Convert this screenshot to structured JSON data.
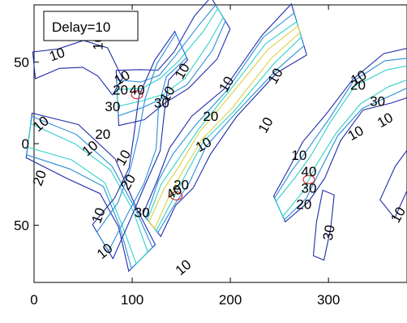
{
  "chart_data": {
    "type": "contour",
    "legend_text": "Delay=10",
    "legend_position": "top-left",
    "xlim": [
      0,
      380
    ],
    "ylim": [
      -85,
      85
    ],
    "y_reversed": true,
    "x_ticks": [
      "0",
      "100",
      "200",
      "300"
    ],
    "y_ticks": [
      "50",
      "0",
      "50"
    ],
    "contour_levels": [
      10,
      20,
      30,
      40
    ],
    "contour_colors": [
      "#1f2ca8",
      "#2a8fd8",
      "#2fd1c8",
      "#e0d040",
      "#d02020"
    ],
    "contour_labels": [
      {
        "text": "10",
        "x": 25,
        "y": 52,
        "rot": -20
      },
      {
        "text": "10",
        "x": 70,
        "y": 62,
        "rot": -90
      },
      {
        "text": "10",
        "x": 92,
        "y": 38,
        "rot": -30
      },
      {
        "text": "20",
        "x": 88,
        "y": 30,
        "rot": 0
      },
      {
        "text": "40",
        "x": 105,
        "y": 30,
        "rot": 0
      },
      {
        "text": "30",
        "x": 130,
        "y": 22,
        "rot": 0
      },
      {
        "text": "10",
        "x": 140,
        "y": 29,
        "rot": -60
      },
      {
        "text": "10",
        "x": 155,
        "y": 43,
        "rot": -60
      },
      {
        "text": "10",
        "x": 200,
        "y": 35,
        "rot": -60
      },
      {
        "text": "10",
        "x": 250,
        "y": 40,
        "rot": -60
      },
      {
        "text": "10",
        "x": 333,
        "y": 38,
        "rot": -30
      },
      {
        "text": "20",
        "x": 330,
        "y": 33,
        "rot": 0
      },
      {
        "text": "30",
        "x": 350,
        "y": 23,
        "rot": 0
      },
      {
        "text": "10",
        "x": 360,
        "y": 12,
        "rot": -30
      },
      {
        "text": "10",
        "x": 330,
        "y": 4,
        "rot": -30
      },
      {
        "text": "30",
        "x": 80,
        "y": 20,
        "rot": 0
      },
      {
        "text": "20",
        "x": 70,
        "y": 3,
        "rot": 0
      },
      {
        "text": "10",
        "x": 60,
        "y": -5,
        "rot": -40
      },
      {
        "text": "10",
        "x": 10,
        "y": 10,
        "rot": -40
      },
      {
        "text": "20",
        "x": 10,
        "y": -22,
        "rot": -70
      },
      {
        "text": "20",
        "x": 180,
        "y": 14,
        "rot": 0
      },
      {
        "text": "10",
        "x": 175,
        "y": -3,
        "rot": -30
      },
      {
        "text": "20",
        "x": 150,
        "y": -28,
        "rot": 0
      },
      {
        "text": "40",
        "x": 145,
        "y": -32,
        "rot": -30
      },
      {
        "text": "20",
        "x": 100,
        "y": -25,
        "rot": -60
      },
      {
        "text": "10",
        "x": 95,
        "y": -10,
        "rot": -60
      },
      {
        "text": "30",
        "x": 110,
        "y": -45,
        "rot": 0
      },
      {
        "text": "10",
        "x": 75,
        "y": -68,
        "rot": -40
      },
      {
        "text": "10",
        "x": 155,
        "y": -78,
        "rot": -40
      },
      {
        "text": "10",
        "x": 70,
        "y": -45,
        "rot": -70
      },
      {
        "text": "20",
        "x": 275,
        "y": -40,
        "rot": 0
      },
      {
        "text": "30",
        "x": 280,
        "y": -30,
        "rot": 0
      },
      {
        "text": "40",
        "x": 280,
        "y": -20,
        "rot": 0
      },
      {
        "text": "10",
        "x": 270,
        "y": -10,
        "rot": 0
      },
      {
        "text": "30",
        "x": 305,
        "y": -55,
        "rot": -80
      },
      {
        "text": "10",
        "x": 240,
        "y": 10,
        "rot": -60
      },
      {
        "text": "10",
        "x": 375,
        "y": -45,
        "rot": -60
      }
    ]
  }
}
